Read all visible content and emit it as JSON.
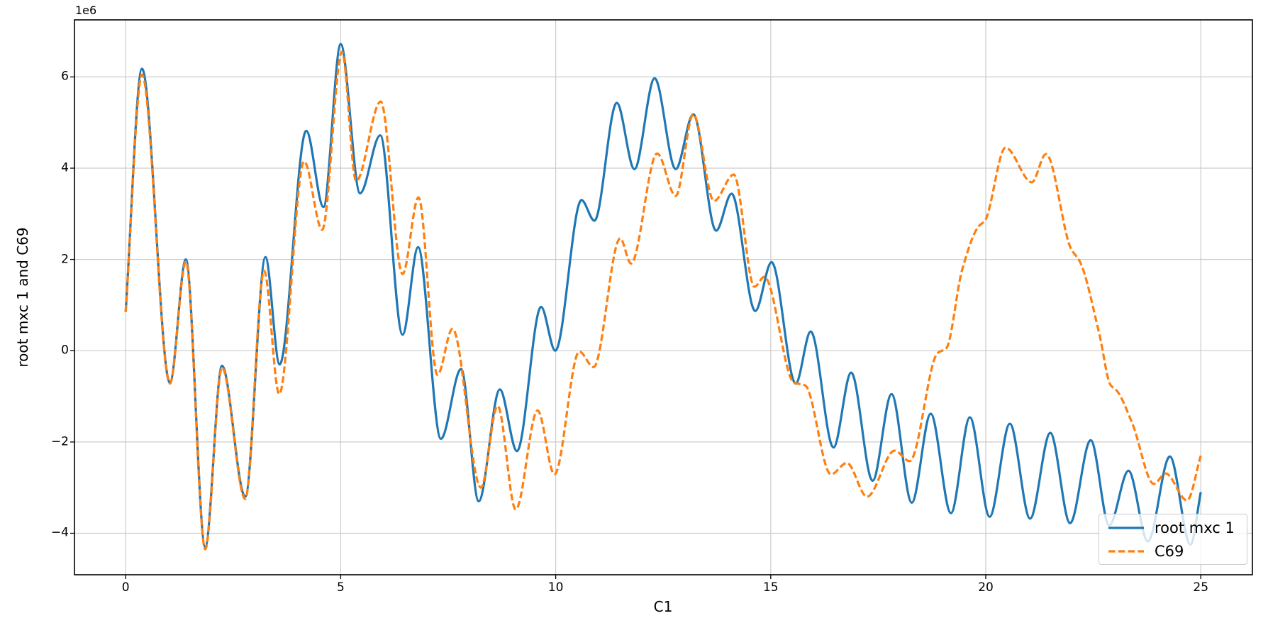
{
  "figure": {
    "offset_text": "1e6"
  },
  "chart_data": {
    "type": "line",
    "title": "",
    "xlabel": "C1",
    "ylabel": "root mxc 1 and C69",
    "y_scale_offset_text": "1e6",
    "y_unit_multiplier": 1000000,
    "xlim": [
      -1.19,
      26.2
    ],
    "ylim": [
      -4.91,
      7.25
    ],
    "x_ticks": [
      0,
      5,
      10,
      15,
      20,
      25
    ],
    "x_tick_labels": [
      "0",
      "5",
      "10",
      "15",
      "20",
      "25"
    ],
    "y_ticks": [
      6,
      4,
      2,
      0,
      -2,
      -4
    ],
    "y_tick_labels": [
      "6",
      "4",
      "2",
      "0",
      "−2",
      "−4"
    ],
    "grid": true,
    "grid_color": "#cccccc",
    "spine_color": "#000000",
    "legend_position": "lower right",
    "series": [
      {
        "name": "root mxc 1",
        "color": "#1f77b4",
        "line_style": "solid",
        "points": [
          [
            0,
            0.85
          ],
          [
            0.38,
            6.18
          ],
          [
            1.03,
            -0.7
          ],
          [
            1.4,
            2.0
          ],
          [
            1.85,
            -4.3
          ],
          [
            2.24,
            -0.33
          ],
          [
            2.78,
            -3.2
          ],
          [
            3.25,
            2.05
          ],
          [
            3.58,
            -0.3
          ],
          [
            4.2,
            4.82
          ],
          [
            4.6,
            3.15
          ],
          [
            5.0,
            6.72
          ],
          [
            5.45,
            3.45
          ],
          [
            5.92,
            4.72
          ],
          [
            6.44,
            0.35
          ],
          [
            6.8,
            2.27
          ],
          [
            7.33,
            -1.93
          ],
          [
            7.8,
            -0.4
          ],
          [
            8.21,
            -3.3
          ],
          [
            8.7,
            -0.85
          ],
          [
            9.1,
            -2.2
          ],
          [
            9.66,
            0.96
          ],
          [
            9.99,
            0.0
          ],
          [
            10.6,
            3.3
          ],
          [
            10.9,
            2.85
          ],
          [
            11.42,
            5.43
          ],
          [
            11.83,
            3.98
          ],
          [
            12.3,
            5.97
          ],
          [
            12.79,
            3.98
          ],
          [
            13.2,
            5.18
          ],
          [
            13.73,
            2.63
          ],
          [
            14.09,
            3.44
          ],
          [
            14.64,
            0.87
          ],
          [
            15.02,
            1.94
          ],
          [
            15.58,
            -0.72
          ],
          [
            15.93,
            0.42
          ],
          [
            16.46,
            -2.12
          ],
          [
            16.87,
            -0.48
          ],
          [
            17.37,
            -2.85
          ],
          [
            17.81,
            -0.95
          ],
          [
            18.28,
            -3.33
          ],
          [
            18.72,
            -1.38
          ],
          [
            19.19,
            -3.56
          ],
          [
            19.63,
            -1.46
          ],
          [
            20.09,
            -3.64
          ],
          [
            20.56,
            -1.6
          ],
          [
            21.03,
            -3.68
          ],
          [
            21.5,
            -1.8
          ],
          [
            21.96,
            -3.78
          ],
          [
            22.44,
            -1.96
          ],
          [
            22.87,
            -3.83
          ],
          [
            23.32,
            -2.63
          ],
          [
            23.77,
            -4.18
          ],
          [
            24.28,
            -2.32
          ],
          [
            24.76,
            -4.25
          ],
          [
            25,
            -3.1
          ]
        ]
      },
      {
        "name": "C69",
        "color": "#ff7f0e",
        "line_style": "dashed",
        "points": [
          [
            0,
            0.85
          ],
          [
            0.38,
            6.05
          ],
          [
            1.03,
            -0.72
          ],
          [
            1.4,
            1.95
          ],
          [
            1.85,
            -4.35
          ],
          [
            2.24,
            -0.37
          ],
          [
            2.78,
            -3.25
          ],
          [
            3.22,
            1.75
          ],
          [
            3.57,
            -0.95
          ],
          [
            4.15,
            4.15
          ],
          [
            4.57,
            2.65
          ],
          [
            5.03,
            6.55
          ],
          [
            5.36,
            3.72
          ],
          [
            5.93,
            5.46
          ],
          [
            6.44,
            1.68
          ],
          [
            6.81,
            3.36
          ],
          [
            7.25,
            -0.53
          ],
          [
            7.6,
            0.48
          ],
          [
            8.26,
            -3.0
          ],
          [
            8.65,
            -1.21
          ],
          [
            9.07,
            -3.48
          ],
          [
            9.58,
            -1.31
          ],
          [
            9.97,
            -2.71
          ],
          [
            10.55,
            -0.02
          ],
          [
            10.88,
            -0.36
          ],
          [
            11.5,
            2.46
          ],
          [
            11.75,
            1.91
          ],
          [
            12.36,
            4.32
          ],
          [
            12.79,
            3.39
          ],
          [
            13.2,
            5.18
          ],
          [
            13.68,
            3.28
          ],
          [
            14.14,
            3.86
          ],
          [
            14.62,
            1.4
          ],
          [
            14.85,
            1.62
          ],
          [
            15.54,
            -0.7
          ],
          [
            15.8,
            -0.76
          ],
          [
            16.4,
            -2.71
          ],
          [
            16.77,
            -2.46
          ],
          [
            17.24,
            -3.2
          ],
          [
            17.88,
            -2.19
          ],
          [
            18.23,
            -2.42
          ],
          [
            18.88,
            -0.05
          ],
          [
            19.08,
            0.05
          ],
          [
            19.45,
            1.77
          ],
          [
            19.83,
            2.72
          ],
          [
            19.98,
            2.85
          ],
          [
            20.46,
            4.45
          ],
          [
            21.07,
            3.69
          ],
          [
            21.4,
            4.31
          ],
          [
            21.98,
            2.24
          ],
          [
            22.19,
            1.95
          ],
          [
            22.64,
            0.37
          ],
          [
            22.9,
            -0.75
          ],
          [
            23.05,
            -0.88
          ],
          [
            23.41,
            -1.6
          ],
          [
            23.91,
            -2.92
          ],
          [
            24.18,
            -2.69
          ],
          [
            24.68,
            -3.28
          ],
          [
            25,
            -2.3
          ]
        ]
      }
    ]
  }
}
